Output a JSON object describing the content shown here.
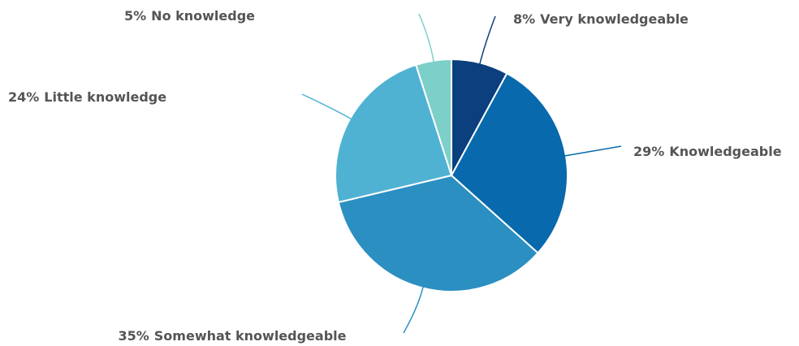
{
  "chart_data": {
    "type": "pie",
    "categories": [
      "Very knowledgeable",
      "Knowledgeable",
      "Somewhat knowledgeable",
      "Little knowledge",
      "No knowledge"
    ],
    "values": [
      8,
      29,
      35,
      24,
      5
    ],
    "value_labels": [
      "8%",
      "29%",
      "35%",
      "24%",
      "5%"
    ],
    "colors": [
      "#0b3f7e",
      "#0869ad",
      "#2b8fc1",
      "#4fb2d3",
      "#7dcfc9"
    ]
  }
}
